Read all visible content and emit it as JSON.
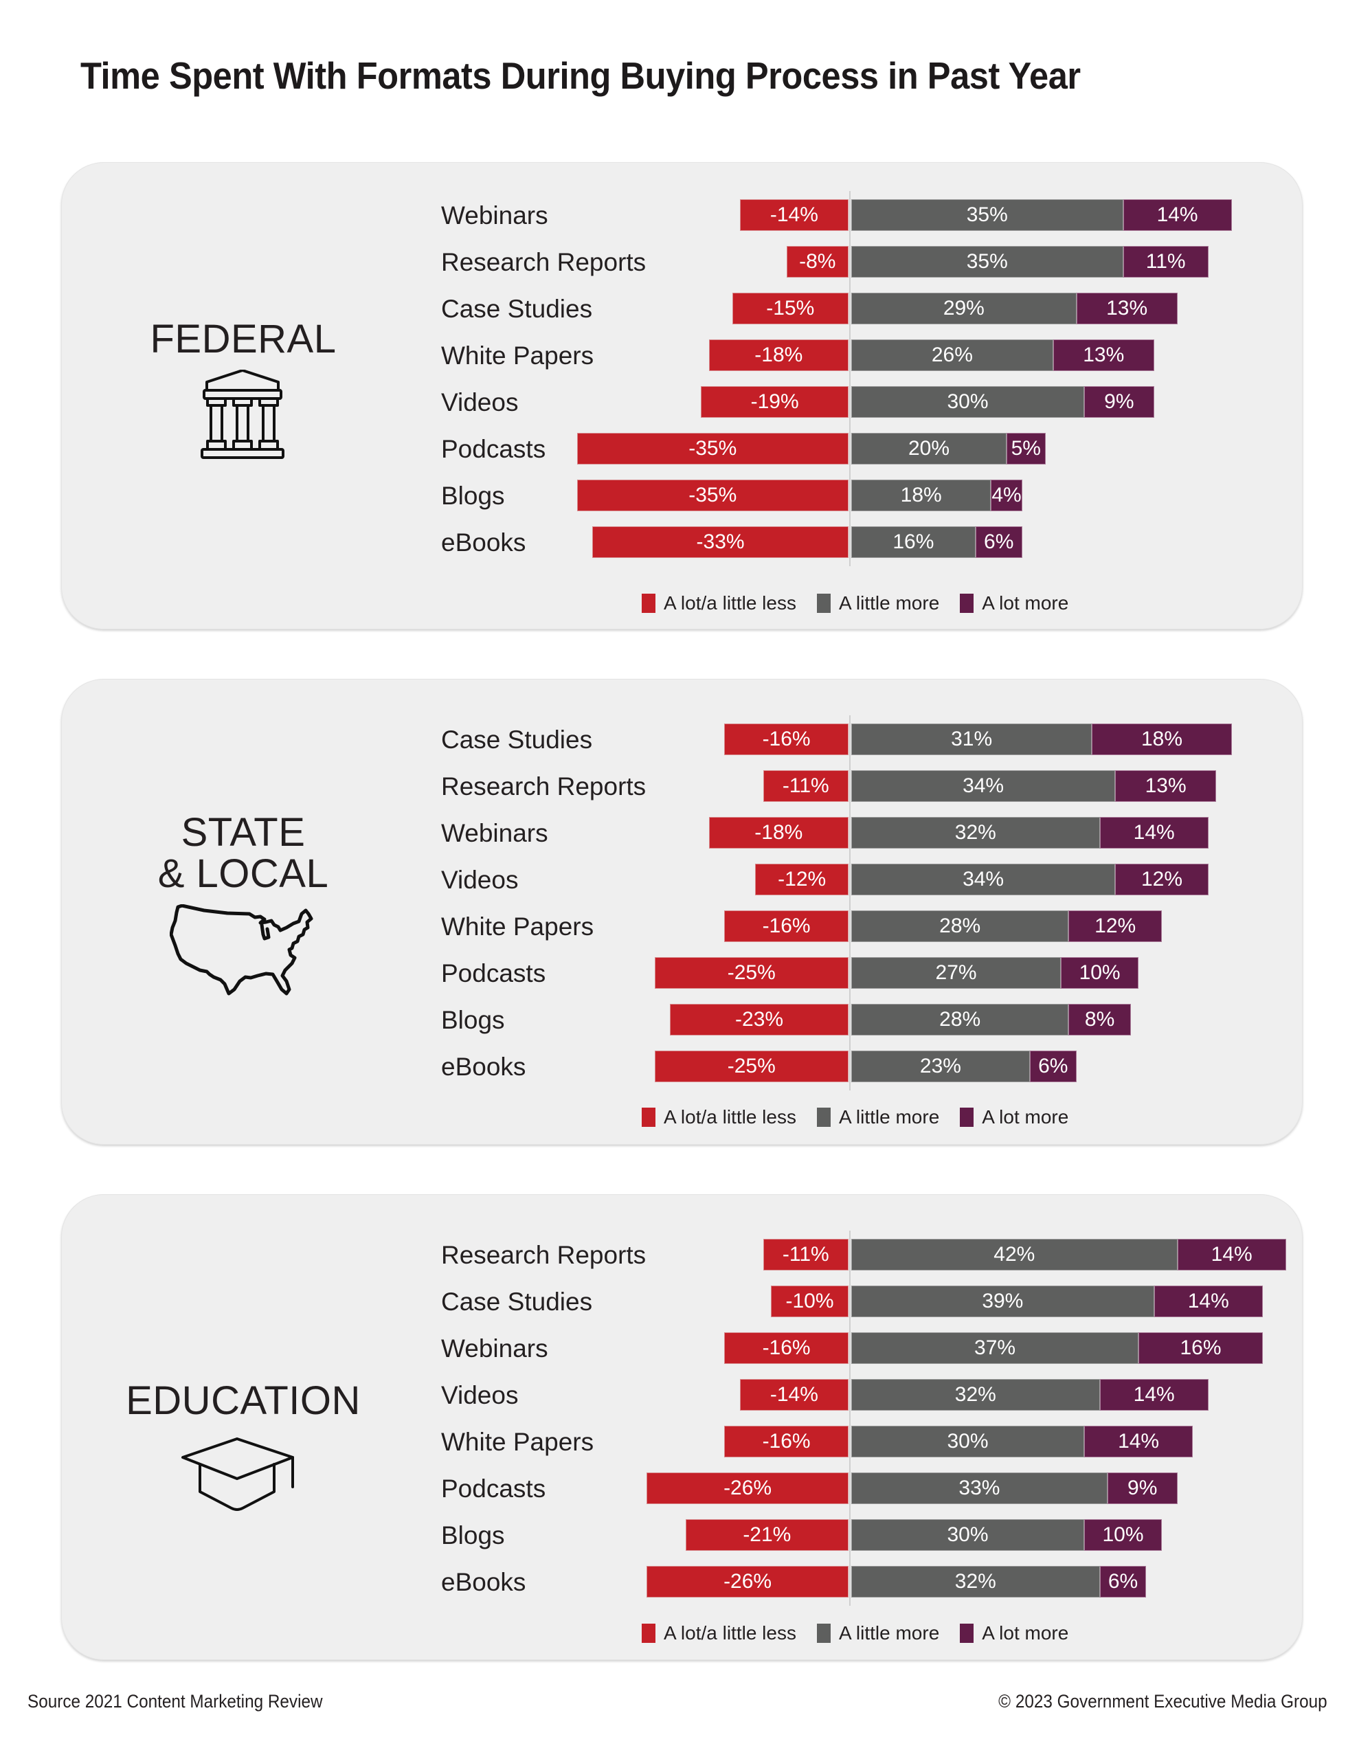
{
  "title": "Time Spent With Formats During Buying Process in Past Year",
  "colors": {
    "less": "#c41f27",
    "little_more": "#5e5f5e",
    "lot_more": "#611c48",
    "panel_bg": "#efefef"
  },
  "legend": [
    {
      "key": "less",
      "label": "A lot/a little less"
    },
    {
      "key": "little_more",
      "label": "A little more"
    },
    {
      "key": "lot_more",
      "label": "A lot more"
    }
  ],
  "sections": [
    {
      "title_lines": [
        "FEDERAL"
      ],
      "icon": "government-building-icon"
    },
    {
      "title_lines": [
        "STATE",
        "& LOCAL"
      ],
      "icon": "us-map-icon"
    },
    {
      "title_lines": [
        "EDUCATION"
      ],
      "icon": "graduation-cap-icon"
    }
  ],
  "footer": {
    "source": "Source 2021 Content Marketing Review",
    "copyright": "© 2023 Government Executive Media Group"
  },
  "chart_data": [
    {
      "type": "bar",
      "orientation": "horizontal-diverging-stacked",
      "title": "FEDERAL",
      "categories": [
        "Webinars",
        "Research Reports",
        "Case Studies",
        "White Papers",
        "Videos",
        "Podcasts",
        "Blogs",
        "eBooks"
      ],
      "series": [
        {
          "name": "A lot/a little less",
          "values": [
            -14,
            -8,
            -15,
            -18,
            -19,
            -35,
            -35,
            -33
          ]
        },
        {
          "name": "A little more",
          "values": [
            35,
            35,
            29,
            26,
            30,
            20,
            18,
            16
          ]
        },
        {
          "name": "A lot more",
          "values": [
            14,
            11,
            13,
            13,
            9,
            5,
            4,
            6
          ]
        }
      ],
      "unit": "%",
      "legend_position": "bottom"
    },
    {
      "type": "bar",
      "orientation": "horizontal-diverging-stacked",
      "title": "STATE & LOCAL",
      "categories": [
        "Case Studies",
        "Research Reports",
        "Webinars",
        "Videos",
        "White Papers",
        "Podcasts",
        "Blogs",
        "eBooks"
      ],
      "series": [
        {
          "name": "A lot/a little less",
          "values": [
            -16,
            -11,
            -18,
            -12,
            -16,
            -25,
            -23,
            -25
          ]
        },
        {
          "name": "A little more",
          "values": [
            31,
            34,
            32,
            34,
            28,
            27,
            28,
            23
          ]
        },
        {
          "name": "A lot more",
          "values": [
            18,
            13,
            14,
            12,
            12,
            10,
            8,
            6
          ]
        }
      ],
      "unit": "%",
      "legend_position": "bottom"
    },
    {
      "type": "bar",
      "orientation": "horizontal-diverging-stacked",
      "title": "EDUCATION",
      "categories": [
        "Research Reports",
        "Case Studies",
        "Webinars",
        "Videos",
        "White Papers",
        "Podcasts",
        "Blogs",
        "eBooks"
      ],
      "series": [
        {
          "name": "A lot/a little less",
          "values": [
            -11,
            -10,
            -16,
            -14,
            -16,
            -26,
            -21,
            -26
          ]
        },
        {
          "name": "A little more",
          "values": [
            42,
            39,
            37,
            32,
            30,
            33,
            30,
            32
          ]
        },
        {
          "name": "A lot more",
          "values": [
            14,
            14,
            16,
            14,
            14,
            9,
            10,
            6
          ]
        }
      ],
      "unit": "%",
      "legend_position": "bottom"
    }
  ]
}
